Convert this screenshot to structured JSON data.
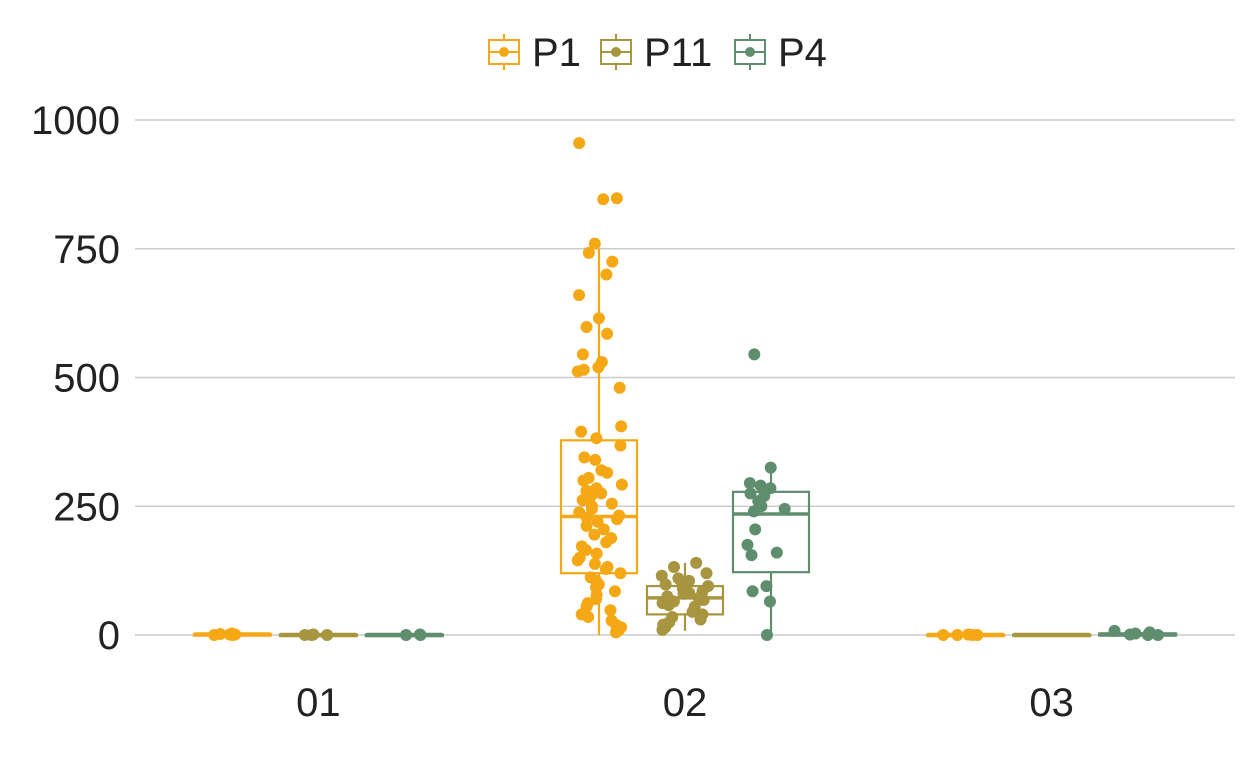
{
  "chart_data": {
    "type": "box",
    "categories": [
      "01",
      "02",
      "03"
    ],
    "ylim": [
      -75,
      1000
    ],
    "yticks": [
      0,
      250,
      500,
      750,
      1000
    ],
    "ytick_labels": [
      "0",
      "250",
      "500",
      "750",
      "1000"
    ],
    "grid": true,
    "legend_position": "top",
    "series": [
      {
        "name": "P1",
        "color": "#F5A815",
        "boxes": [
          {
            "category": "01",
            "min": 0,
            "q1": 0,
            "median": 1,
            "q3": 1,
            "max": 2,
            "points": [
              3,
              1,
              0,
              2,
              1,
              0
            ]
          },
          {
            "category": "02",
            "min": 0,
            "q1": 120,
            "median": 230,
            "q3": 378,
            "max": 750,
            "points": [
              955,
              848,
              846,
              760,
              742,
              725,
              700,
              660,
              615,
              598,
              585,
              545,
              530,
              520,
              515,
              512,
              480,
              405,
              395,
              382,
              368,
              345,
              340,
              320,
              315,
              305,
              300,
              292,
              285,
              280,
              275,
              270,
              262,
              255,
              250,
              245,
              238,
              232,
              228,
              225,
              220,
              212,
              205,
              195,
              188,
              180,
              172,
              165,
              158,
              150,
              145,
              138,
              132,
              128,
              120,
              112,
              105,
              98,
              92,
              85,
              78,
              70,
              62,
              55,
              48,
              40,
              35,
              28,
              20,
              15,
              10,
              5
            ]
          },
          {
            "category": "03",
            "min": 0,
            "q1": 0,
            "median": 0,
            "q3": 0,
            "max": 1,
            "points": [
              0,
              0,
              1,
              0,
              0
            ]
          }
        ]
      },
      {
        "name": "P11",
        "color": "#A89540",
        "boxes": [
          {
            "category": "01",
            "min": 0,
            "q1": 0,
            "median": 0,
            "q3": 0,
            "max": 1,
            "points": [
              0,
              0,
              1,
              0
            ]
          },
          {
            "category": "02",
            "min": 8,
            "q1": 40,
            "median": 72,
            "q3": 95,
            "max": 140,
            "points": [
              140,
              132,
              120,
              115,
              110,
              105,
              100,
              98,
              95,
              90,
              85,
              82,
              80,
              75,
              72,
              68,
              65,
              62,
              58,
              55,
              50,
              45,
              40,
              35,
              30,
              25,
              20,
              15,
              10
            ]
          },
          {
            "category": "03",
            "min": 0,
            "q1": 0,
            "median": 0,
            "q3": 0,
            "max": 0,
            "points": []
          }
        ]
      },
      {
        "name": "P4",
        "color": "#5E8E6E",
        "boxes": [
          {
            "category": "01",
            "min": 0,
            "q1": 0,
            "median": 0,
            "q3": 0,
            "max": 1,
            "points": [
              0,
              1,
              0
            ]
          },
          {
            "category": "02",
            "min": 0,
            "q1": 122,
            "median": 235,
            "q3": 278,
            "max": 325,
            "points": [
              545,
              325,
              295,
              290,
              285,
              275,
              270,
              260,
              250,
              245,
              240,
              205,
              175,
              160,
              155,
              95,
              85,
              65,
              0
            ]
          },
          {
            "category": "03",
            "min": 0,
            "q1": 0,
            "median": 1,
            "q3": 2,
            "max": 8,
            "points": [
              8,
              5,
              3,
              2,
              1,
              0,
              0
            ]
          }
        ]
      }
    ]
  }
}
